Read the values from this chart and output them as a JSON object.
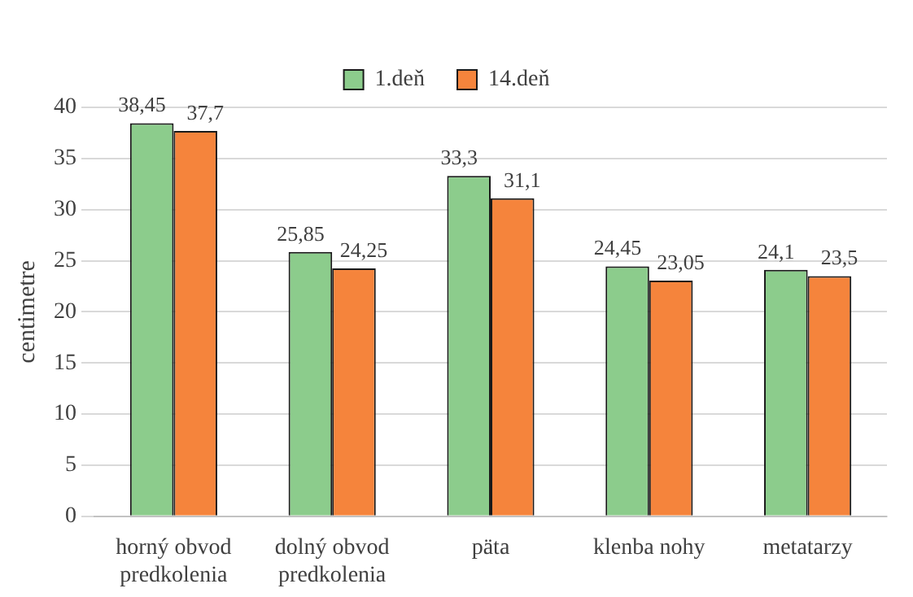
{
  "chart_data": {
    "type": "bar",
    "ylabel": "centimetre",
    "categories": [
      "horný obvod predkolenia",
      "dolný obvod predkolenia",
      "päta",
      "klenba nohy",
      "metatarzy"
    ],
    "series": [
      {
        "name": "1.deň",
        "color": "#8ccc8c",
        "values": [
          38.45,
          25.85,
          33.3,
          24.45,
          24.1
        ],
        "value_labels": [
          "38,45",
          "25,85",
          "33,3",
          "24,45",
          "24,1"
        ]
      },
      {
        "name": "14.deň",
        "color": "#f5843c",
        "values": [
          37.7,
          24.25,
          31.1,
          23.05,
          23.5
        ],
        "value_labels": [
          "37,7",
          "24,25",
          "31,1",
          "23,05",
          "23,5"
        ]
      }
    ],
    "ylim": [
      0,
      40
    ],
    "yticks": [
      0,
      5,
      10,
      15,
      20,
      25,
      30,
      35,
      40
    ],
    "grid": "y",
    "legend": "top"
  }
}
